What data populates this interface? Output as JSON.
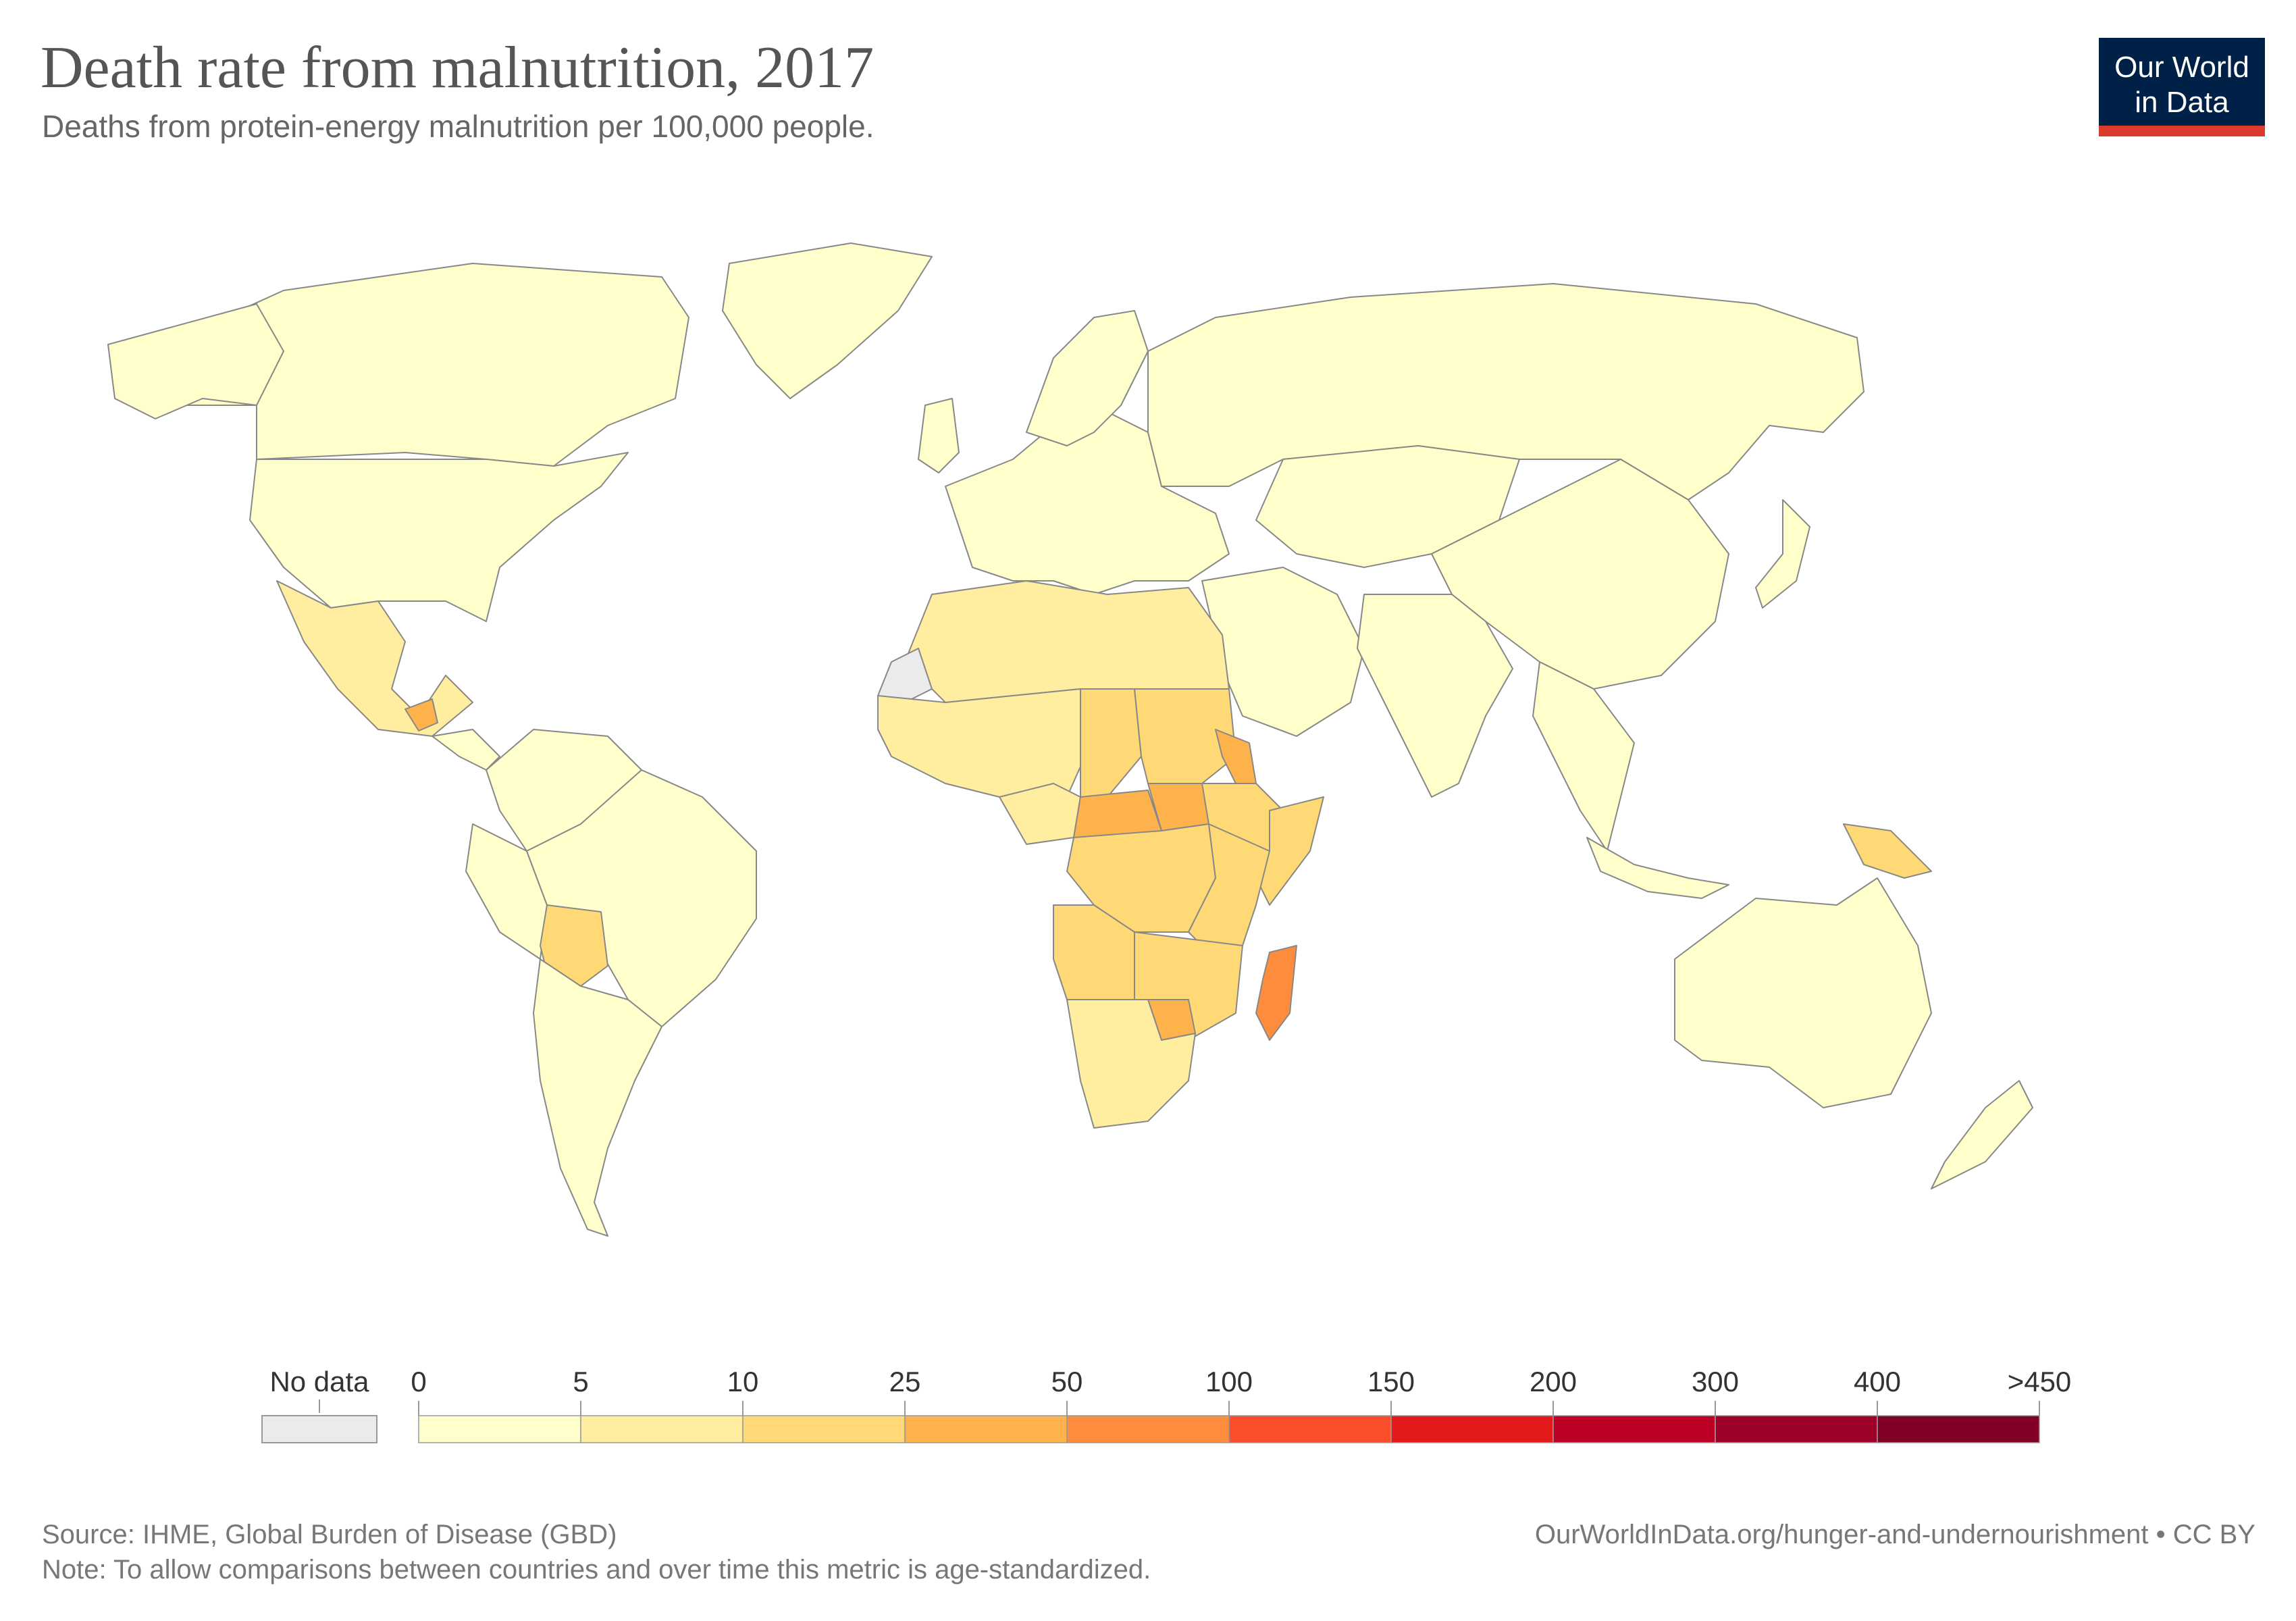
{
  "title": "Death rate from malnutrition, 2017",
  "subtitle": "Deaths from protein-energy malnutrition per 100,000 people.",
  "logo": {
    "line1": "Our World",
    "line2": "in Data"
  },
  "legend": {
    "no_data_label": "No data",
    "no_data_color": "#ebebeb",
    "ticks": [
      "0",
      "5",
      "10",
      "25",
      "50",
      "100",
      "150",
      "200",
      "300",
      "400",
      ">450"
    ],
    "bins": [
      {
        "min": 0,
        "max": 5,
        "color": "#ffffcc"
      },
      {
        "min": 5,
        "max": 10,
        "color": "#ffeda0"
      },
      {
        "min": 10,
        "max": 25,
        "color": "#fed976"
      },
      {
        "min": 25,
        "max": 50,
        "color": "#feb24c"
      },
      {
        "min": 50,
        "max": 100,
        "color": "#fd8d3c"
      },
      {
        "min": 100,
        "max": 150,
        "color": "#fc4e2a"
      },
      {
        "min": 150,
        "max": 200,
        "color": "#e31a1c"
      },
      {
        "min": 200,
        "max": 300,
        "color": "#bd0026"
      },
      {
        "min": 300,
        "max": 400,
        "color": "#9e0127"
      },
      {
        "min": 400,
        "max": 450,
        "color": "#800026"
      }
    ]
  },
  "map_data": {
    "regions": [
      {
        "name": "Canada",
        "bin": 0
      },
      {
        "name": "United States",
        "bin": 0
      },
      {
        "name": "Mexico",
        "bin": 1
      },
      {
        "name": "Guatemala",
        "bin": 3
      },
      {
        "name": "Greenland",
        "bin": 0
      },
      {
        "name": "Brazil",
        "bin": 0
      },
      {
        "name": "Bolivia",
        "bin": 2
      },
      {
        "name": "Argentina",
        "bin": 0
      },
      {
        "name": "Western Sahara",
        "bin": null
      },
      {
        "name": "Madagascar",
        "bin": 4
      },
      {
        "name": "Central African Republic",
        "bin": 3
      },
      {
        "name": "South Sudan",
        "bin": 3
      },
      {
        "name": "Zimbabwe",
        "bin": 3
      },
      {
        "name": "Eritrea",
        "bin": 3
      },
      {
        "name": "Chad",
        "bin": 2
      },
      {
        "name": "DR Congo",
        "bin": 2
      },
      {
        "name": "Angola",
        "bin": 2
      },
      {
        "name": "Ethiopia",
        "bin": 2
      },
      {
        "name": "Somalia",
        "bin": 2
      },
      {
        "name": "Niger",
        "bin": 1
      },
      {
        "name": "Nigeria",
        "bin": 1
      },
      {
        "name": "Russia",
        "bin": 0
      },
      {
        "name": "China",
        "bin": 0
      },
      {
        "name": "India",
        "bin": 0
      },
      {
        "name": "Australia",
        "bin": 0
      },
      {
        "name": "Papua New Guinea",
        "bin": 2
      }
    ]
  },
  "footer": {
    "source": "Source: IHME, Global Burden of Disease (GBD)",
    "note": "Note: To allow comparisons between countries and over time this metric is age-standardized.",
    "url": "OurWorldInData.org/hunger-and-undernourishment • CC BY"
  }
}
